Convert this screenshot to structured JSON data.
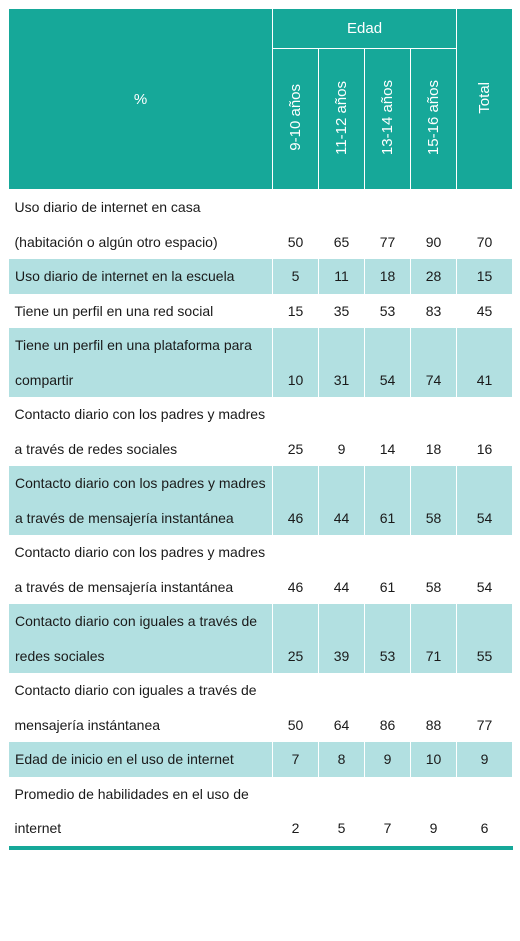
{
  "header": {
    "corner": "%",
    "group": "Edad",
    "columns": [
      "9-10 años",
      "11-12 años",
      "13-14 años",
      "15-16 años"
    ],
    "total": "Total"
  },
  "rows": [
    {
      "label": "Uso diario de internet en casa (habitación o algún otro espacio)",
      "values": [
        50,
        65,
        77,
        90,
        70
      ]
    },
    {
      "label": "Uso diario de internet en la escuela",
      "values": [
        5,
        11,
        18,
        28,
        15
      ]
    },
    {
      "label": "Tiene un perfil en una red social",
      "values": [
        15,
        35,
        53,
        83,
        45
      ]
    },
    {
      "label": "Tiene un perfil en una plataforma para compartir",
      "values": [
        10,
        31,
        54,
        74,
        41
      ]
    },
    {
      "label": "Contacto diario con los padres y madres a través de redes sociales",
      "values": [
        25,
        9,
        14,
        18,
        16
      ]
    },
    {
      "label": "Contacto diario con los padres y madres a través de mensajería instantánea",
      "values": [
        46,
        44,
        61,
        58,
        54
      ]
    },
    {
      "label": "Contacto diario con los padres y madres a través de mensajería instantánea",
      "values": [
        46,
        44,
        61,
        58,
        54
      ]
    },
    {
      "label": "Contacto diario con iguales a través de redes sociales",
      "values": [
        25,
        39,
        53,
        71,
        55
      ]
    },
    {
      "label": "Contacto diario con iguales a través de mensajería instántanea",
      "values": [
        50,
        64,
        86,
        88,
        77
      ]
    },
    {
      "label": "Edad de inicio en el uso de internet",
      "values": [
        7,
        8,
        9,
        10,
        9
      ]
    },
    {
      "label": "Promedio de habilidades en el uso de internet",
      "values": [
        2,
        5,
        7,
        9,
        6
      ]
    }
  ]
}
